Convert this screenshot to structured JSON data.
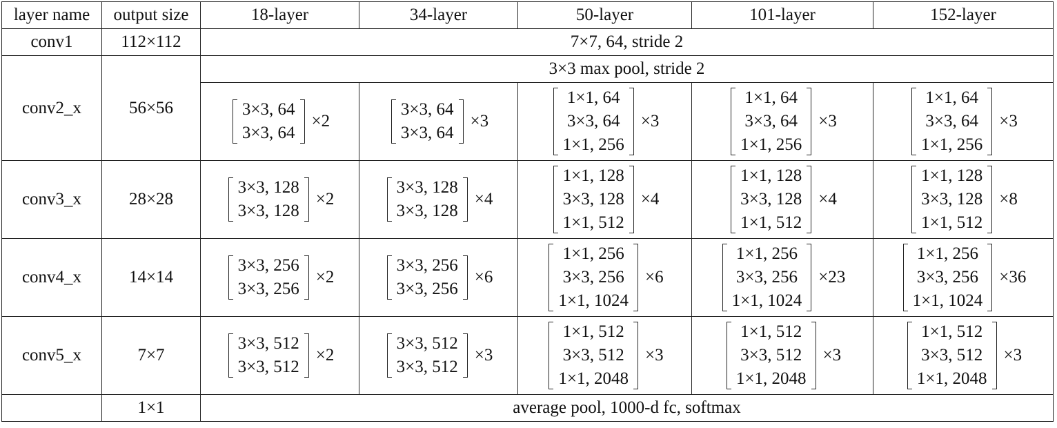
{
  "headers": [
    "layer name",
    "output size",
    "18-layer",
    "34-layer",
    "50-layer",
    "101-layer",
    "152-layer"
  ],
  "conv1": {
    "name": "conv1",
    "size": "112×112",
    "spec": "7×7, 64, stride 2"
  },
  "pool": {
    "spec": "3×3 max pool, stride 2"
  },
  "stages": [
    {
      "name": "conv2_x",
      "size": "56×56",
      "cells": [
        {
          "lines": [
            "3×3, 64",
            "3×3, 64"
          ],
          "mult": "×2"
        },
        {
          "lines": [
            "3×3, 64",
            "3×3, 64"
          ],
          "mult": "×3"
        },
        {
          "lines": [
            "1×1, 64",
            "3×3, 64",
            "1×1, 256"
          ],
          "mult": "×3"
        },
        {
          "lines": [
            "1×1, 64",
            "3×3, 64",
            "1×1, 256"
          ],
          "mult": "×3"
        },
        {
          "lines": [
            "1×1, 64",
            "3×3, 64",
            "1×1, 256"
          ],
          "mult": "×3"
        }
      ]
    },
    {
      "name": "conv3_x",
      "size": "28×28",
      "cells": [
        {
          "lines": [
            "3×3, 128",
            "3×3, 128"
          ],
          "mult": "×2"
        },
        {
          "lines": [
            "3×3, 128",
            "3×3, 128"
          ],
          "mult": "×4"
        },
        {
          "lines": [
            "1×1, 128",
            "3×3, 128",
            "1×1, 512"
          ],
          "mult": "×4"
        },
        {
          "lines": [
            "1×1, 128",
            "3×3, 128",
            "1×1, 512"
          ],
          "mult": "×4"
        },
        {
          "lines": [
            "1×1, 128",
            "3×3, 128",
            "1×1, 512"
          ],
          "mult": "×8"
        }
      ]
    },
    {
      "name": "conv4_x",
      "size": "14×14",
      "cells": [
        {
          "lines": [
            "3×3, 256",
            "3×3, 256"
          ],
          "mult": "×2"
        },
        {
          "lines": [
            "3×3, 256",
            "3×3, 256"
          ],
          "mult": "×6"
        },
        {
          "lines": [
            "1×1, 256",
            "3×3, 256",
            "1×1, 1024"
          ],
          "mult": "×6"
        },
        {
          "lines": [
            "1×1, 256",
            "3×3, 256",
            "1×1, 1024"
          ],
          "mult": "×23"
        },
        {
          "lines": [
            "1×1, 256",
            "3×3, 256",
            "1×1, 1024"
          ],
          "mult": "×36"
        }
      ]
    },
    {
      "name": "conv5_x",
      "size": "7×7",
      "cells": [
        {
          "lines": [
            "3×3, 512",
            "3×3, 512"
          ],
          "mult": "×2"
        },
        {
          "lines": [
            "3×3, 512",
            "3×3, 512"
          ],
          "mult": "×3"
        },
        {
          "lines": [
            "1×1, 512",
            "3×3, 512",
            "1×1, 2048"
          ],
          "mult": "×3"
        },
        {
          "lines": [
            "1×1, 512",
            "3×3, 512",
            "1×1, 2048"
          ],
          "mult": "×3"
        },
        {
          "lines": [
            "1×1, 512",
            "3×3, 512",
            "1×1, 2048"
          ],
          "mult": "×3"
        }
      ]
    }
  ],
  "final": {
    "name": "",
    "size": "1×1",
    "spec": "average pool, 1000-d fc, softmax"
  }
}
